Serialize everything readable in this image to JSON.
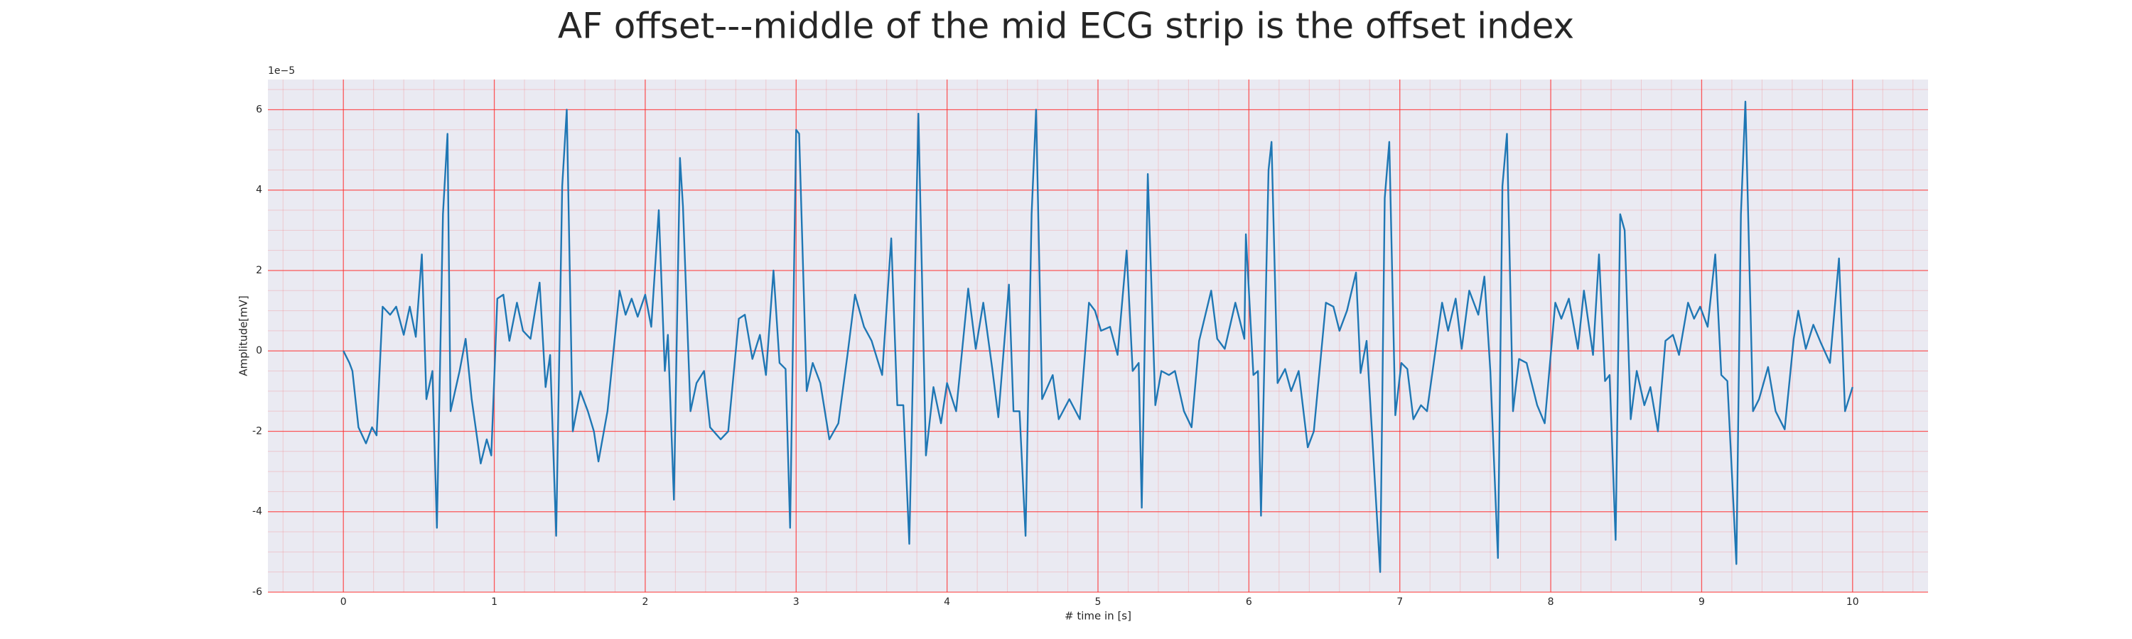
{
  "chart_data": {
    "type": "line",
    "title": "AF offset---middle of the mid ECG strip is the offset index",
    "x_label": "# time in [s]",
    "y_label": "Amplitude[mV]",
    "y_offset_label": "1e−5",
    "color": "#1f77b4",
    "grid": true,
    "grid_color": "#ff3030",
    "minor_grid": true,
    "background": "#eaeaf2",
    "xlim": [
      -0.5,
      10.5
    ],
    "ylim": [
      -6,
      6.75
    ],
    "xticks": [
      0,
      1,
      2,
      3,
      4,
      5,
      6,
      7,
      8,
      9,
      10
    ],
    "yticks": [
      -6,
      -4,
      -2,
      0,
      2,
      4,
      6
    ],
    "x": [
      0,
      0.04,
      0.06,
      0.1,
      0.15,
      0.19,
      0.22,
      0.26,
      0.31,
      0.35,
      0.4,
      0.44,
      0.48,
      0.52,
      0.55,
      0.59,
      0.62,
      0.66,
      0.69,
      0.71,
      0.77,
      0.81,
      0.85,
      0.91,
      0.95,
      0.98,
      1.02,
      1.06,
      1.1,
      1.15,
      1.19,
      1.24,
      1.3,
      1.34,
      1.37,
      1.41,
      1.45,
      1.48,
      1.52,
      1.57,
      1.62,
      1.66,
      1.69,
      1.75,
      1.83,
      1.87,
      1.91,
      1.95,
      2.0,
      2.04,
      2.09,
      2.13,
      2.15,
      2.19,
      2.23,
      2.25,
      2.3,
      2.34,
      2.39,
      2.43,
      2.5,
      2.55,
      2.62,
      2.66,
      2.71,
      2.76,
      2.8,
      2.85,
      2.89,
      2.93,
      2.96,
      3.0,
      3.02,
      3.07,
      3.11,
      3.16,
      3.22,
      3.28,
      3.34,
      3.39,
      3.45,
      3.5,
      3.57,
      3.63,
      3.67,
      3.71,
      3.75,
      3.81,
      3.86,
      3.91,
      3.96,
      4.0,
      4.06,
      4.14,
      4.19,
      4.24,
      4.3,
      4.34,
      4.41,
      4.44,
      4.48,
      4.52,
      4.56,
      4.59,
      4.63,
      4.7,
      4.74,
      4.81,
      4.88,
      4.94,
      4.98,
      5.02,
      5.08,
      5.13,
      5.19,
      5.23,
      5.27,
      5.29,
      5.33,
      5.38,
      5.42,
      5.47,
      5.51,
      5.57,
      5.62,
      5.67,
      5.75,
      5.79,
      5.84,
      5.91,
      5.97,
      5.98,
      6.03,
      6.06,
      6.08,
      6.13,
      6.15,
      6.19,
      6.24,
      6.28,
      6.33,
      6.39,
      6.43,
      6.51,
      6.56,
      6.6,
      6.65,
      6.71,
      6.74,
      6.78,
      6.87,
      6.9,
      6.93,
      6.97,
      7.01,
      7.05,
      7.09,
      7.14,
      7.18,
      7.28,
      7.32,
      7.37,
      7.41,
      7.46,
      7.52,
      7.56,
      7.6,
      7.65,
      7.68,
      7.71,
      7.75,
      7.79,
      7.84,
      7.91,
      7.96,
      8.03,
      8.07,
      8.12,
      8.18,
      8.22,
      8.28,
      8.32,
      8.36,
      8.39,
      8.43,
      8.46,
      8.49,
      8.53,
      8.57,
      8.62,
      8.66,
      8.71,
      8.76,
      8.81,
      8.85,
      8.91,
      8.95,
      8.99,
      9.04,
      9.09,
      9.13,
      9.17,
      9.23,
      9.26,
      9.29,
      9.34,
      9.38,
      9.44,
      9.49,
      9.55,
      9.61,
      9.64,
      9.69,
      9.74,
      9.79,
      9.85,
      9.91,
      9.95,
      10.0
    ],
    "values": [
      0,
      -0.3,
      -0.5,
      -1.9,
      -2.3,
      -1.9,
      -2.1,
      1.1,
      0.9,
      1.1,
      0.4,
      1.1,
      0.35,
      2.4,
      -1.2,
      -0.5,
      -4.4,
      3.4,
      5.4,
      -1.5,
      -0.5,
      0.3,
      -1.2,
      -2.8,
      -2.2,
      -2.6,
      1.3,
      1.4,
      0.25,
      1.2,
      0.5,
      0.3,
      1.7,
      -0.9,
      -0.1,
      -4.6,
      4.1,
      6.0,
      -2.0,
      -1.0,
      -1.5,
      -2.0,
      -2.75,
      -1.5,
      1.5,
      0.9,
      1.3,
      0.85,
      1.4,
      0.6,
      3.5,
      -0.5,
      0.4,
      -3.7,
      4.8,
      3.6,
      -1.5,
      -0.8,
      -0.5,
      -1.9,
      -2.2,
      -2.0,
      0.8,
      0.9,
      -0.2,
      0.4,
      -0.6,
      2.0,
      -0.3,
      -0.45,
      -4.4,
      5.5,
      5.4,
      -1.0,
      -0.3,
      -0.8,
      -2.2,
      -1.8,
      -0.1,
      1.4,
      0.6,
      0.25,
      -0.6,
      2.8,
      -1.35,
      -1.35,
      -4.8,
      5.9,
      -2.6,
      -0.9,
      -1.8,
      -0.8,
      -1.5,
      1.55,
      0.05,
      1.2,
      -0.45,
      -1.65,
      1.65,
      -1.5,
      -1.5,
      -4.6,
      3.4,
      6.0,
      -1.2,
      -0.6,
      -1.7,
      -1.2,
      -1.7,
      1.2,
      1.0,
      0.5,
      0.6,
      -0.1,
      2.5,
      -0.5,
      -0.3,
      -3.9,
      4.4,
      -1.35,
      -0.5,
      -0.6,
      -0.5,
      -1.5,
      -1.9,
      0.25,
      1.5,
      0.3,
      0.05,
      1.2,
      0.3,
      2.9,
      -0.6,
      -0.5,
      -4.1,
      4.5,
      5.2,
      -0.8,
      -0.45,
      -1.0,
      -0.5,
      -2.4,
      -2.0,
      1.2,
      1.1,
      0.5,
      1.0,
      1.95,
      -0.55,
      0.25,
      -5.5,
      3.8,
      5.2,
      -1.6,
      -0.3,
      -0.45,
      -1.7,
      -1.35,
      -1.5,
      1.2,
      0.5,
      1.3,
      0.05,
      1.5,
      0.9,
      1.85,
      -0.5,
      -5.15,
      4.1,
      5.4,
      -1.5,
      -0.2,
      -0.3,
      -1.35,
      -1.8,
      1.2,
      0.8,
      1.3,
      0.05,
      1.5,
      -0.1,
      2.4,
      -0.75,
      -0.6,
      -4.7,
      3.4,
      3.0,
      -1.7,
      -0.5,
      -1.35,
      -0.9,
      -2.0,
      0.25,
      0.4,
      -0.1,
      1.2,
      0.8,
      1.1,
      0.6,
      2.4,
      -0.6,
      -0.75,
      -5.3,
      3.4,
      6.2,
      -1.5,
      -1.2,
      -0.4,
      -1.5,
      -1.95,
      0.3,
      1.0,
      0.05,
      0.65,
      0.2,
      -0.3,
      2.3,
      -1.5,
      -0.9
    ]
  }
}
